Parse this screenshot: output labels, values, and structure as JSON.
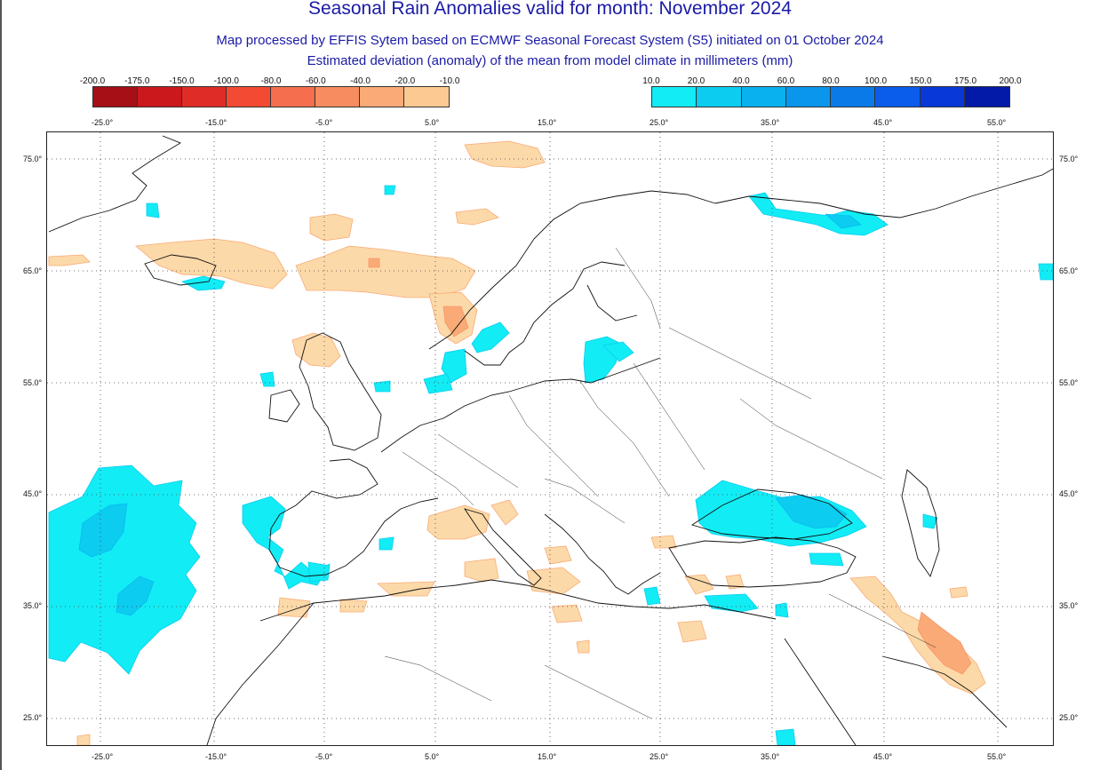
{
  "header": {
    "title": "Seasonal Rain Anomalies valid for month: November 2024",
    "subtitle": "Map processed by EFFIS Sytem based on ECMWF Seasonal Forecast System (S5) initiated on 01 October 2024",
    "description": "Estimated deviation (anomaly) of the mean from model climate in millimeters (mm)"
  },
  "legend_negative": {
    "labels": [
      "-200.0",
      "-175.0",
      "-150.0",
      "-100.0",
      "-80.0",
      "-60.0",
      "-40.0",
      "-20.0",
      "-10.0"
    ],
    "colors": [
      "#a50f15",
      "#cb181d",
      "#e02c26",
      "#f24a33",
      "#f56f4e",
      "#f78c60",
      "#f9aa76",
      "#fcc992"
    ]
  },
  "legend_positive": {
    "labels": [
      "10.0",
      "20.0",
      "40.0",
      "60.0",
      "80.0",
      "100.0",
      "150.0",
      "175.0",
      "200.0"
    ],
    "colors": [
      "#12ecf5",
      "#0cccf0",
      "#09b2ee",
      "#0a96ec",
      "#0b7ae9",
      "#0a5ceb",
      "#0838d8",
      "#031aa8"
    ]
  },
  "longitude_labels": [
    "-25.0°",
    "-15.0°",
    "-5.0°",
    "5.0°",
    "15.0°",
    "25.0°",
    "35.0°",
    "45.0°",
    "55.0°"
  ],
  "latitude_labels": [
    "75.0°",
    "65.0°",
    "55.0°",
    "45.0°",
    "35.0°",
    "25.0°"
  ],
  "colors": {
    "title": "#1a1aa6",
    "grid": "#444444",
    "coast": "#111111"
  }
}
